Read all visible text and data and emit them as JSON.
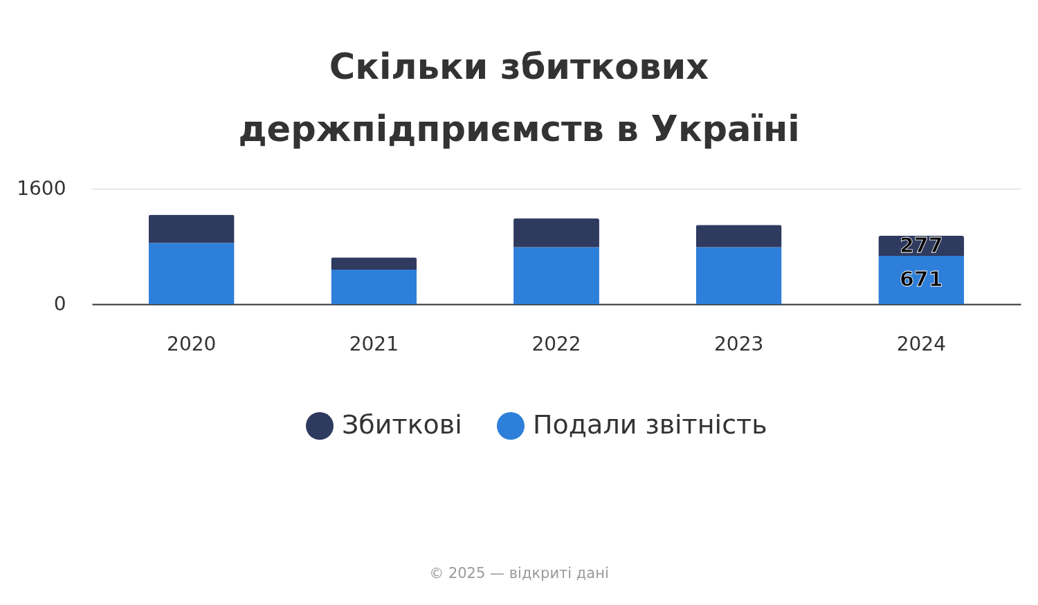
{
  "chart_data": {
    "type": "bar",
    "title": "Скільки збиткових\nдержпідприємств в Україні",
    "categories": [
      "2020",
      "2021",
      "2022",
      "2023",
      "2024"
    ],
    "series": [
      {
        "name": "Подали звітність",
        "color": "#2e7fd9",
        "values": [
          850,
          480,
          790,
          790,
          671
        ],
        "value_labels": [
          null,
          null,
          null,
          null,
          "671"
        ]
      },
      {
        "name": "Збиткові",
        "color": "#2f3a5f",
        "values": [
          390,
          170,
          400,
          310,
          277
        ],
        "value_labels": [
          null,
          null,
          null,
          null,
          "277"
        ]
      }
    ],
    "stacked": true,
    "ylim": [
      0,
      1600
    ],
    "yticks": [
      0,
      1600
    ],
    "grid": "y",
    "legend": "bottom",
    "annotations": [
      "© 2025 — відкриті дані"
    ]
  }
}
